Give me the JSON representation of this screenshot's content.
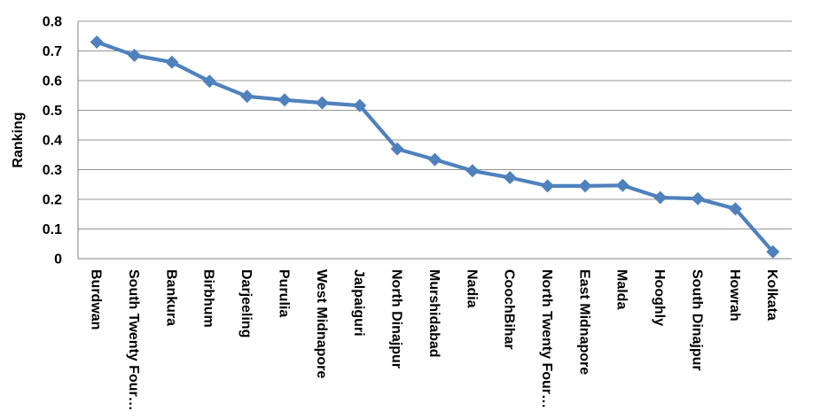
{
  "chart_data": {
    "type": "line",
    "title": "",
    "ylabel": "Ranking",
    "xlabel": "",
    "ylim": [
      0,
      0.8
    ],
    "ytick_step": 0.1,
    "yticks": [
      "0",
      "0.1",
      "0.2",
      "0.3",
      "0.4",
      "0.5",
      "0.6",
      "0.7",
      "0.8"
    ],
    "grid": true,
    "legend": "none",
    "marker": "diamond",
    "categories": [
      "Burdwan",
      "South Twenty Four…",
      "Bankura",
      "Birbhum",
      "Darjeeling",
      "Purulia",
      "West Midnapore",
      "Jalpaiguri",
      "North Dinajpur",
      "Murshidabad",
      "Nadia",
      "CoochBihar",
      "North Twenty Four…",
      "East Midnapore",
      "Malda",
      "Hooghly",
      "South Dinajpur",
      "Howrah",
      "Kolkata"
    ],
    "series": [
      {
        "name": "Ranking",
        "values": [
          0.73,
          0.685,
          0.662,
          0.598,
          0.547,
          0.535,
          0.525,
          0.516,
          0.37,
          0.334,
          0.296,
          0.273,
          0.245,
          0.245,
          0.247,
          0.206,
          0.202,
          0.168,
          0.023
        ]
      }
    ],
    "colors": {
      "line": "#4F81BD",
      "marker": "#4F81BD",
      "grid": "#969696",
      "axis": "#7F7F7F",
      "text": "#000000",
      "background": "#FFFFFF"
    }
  }
}
